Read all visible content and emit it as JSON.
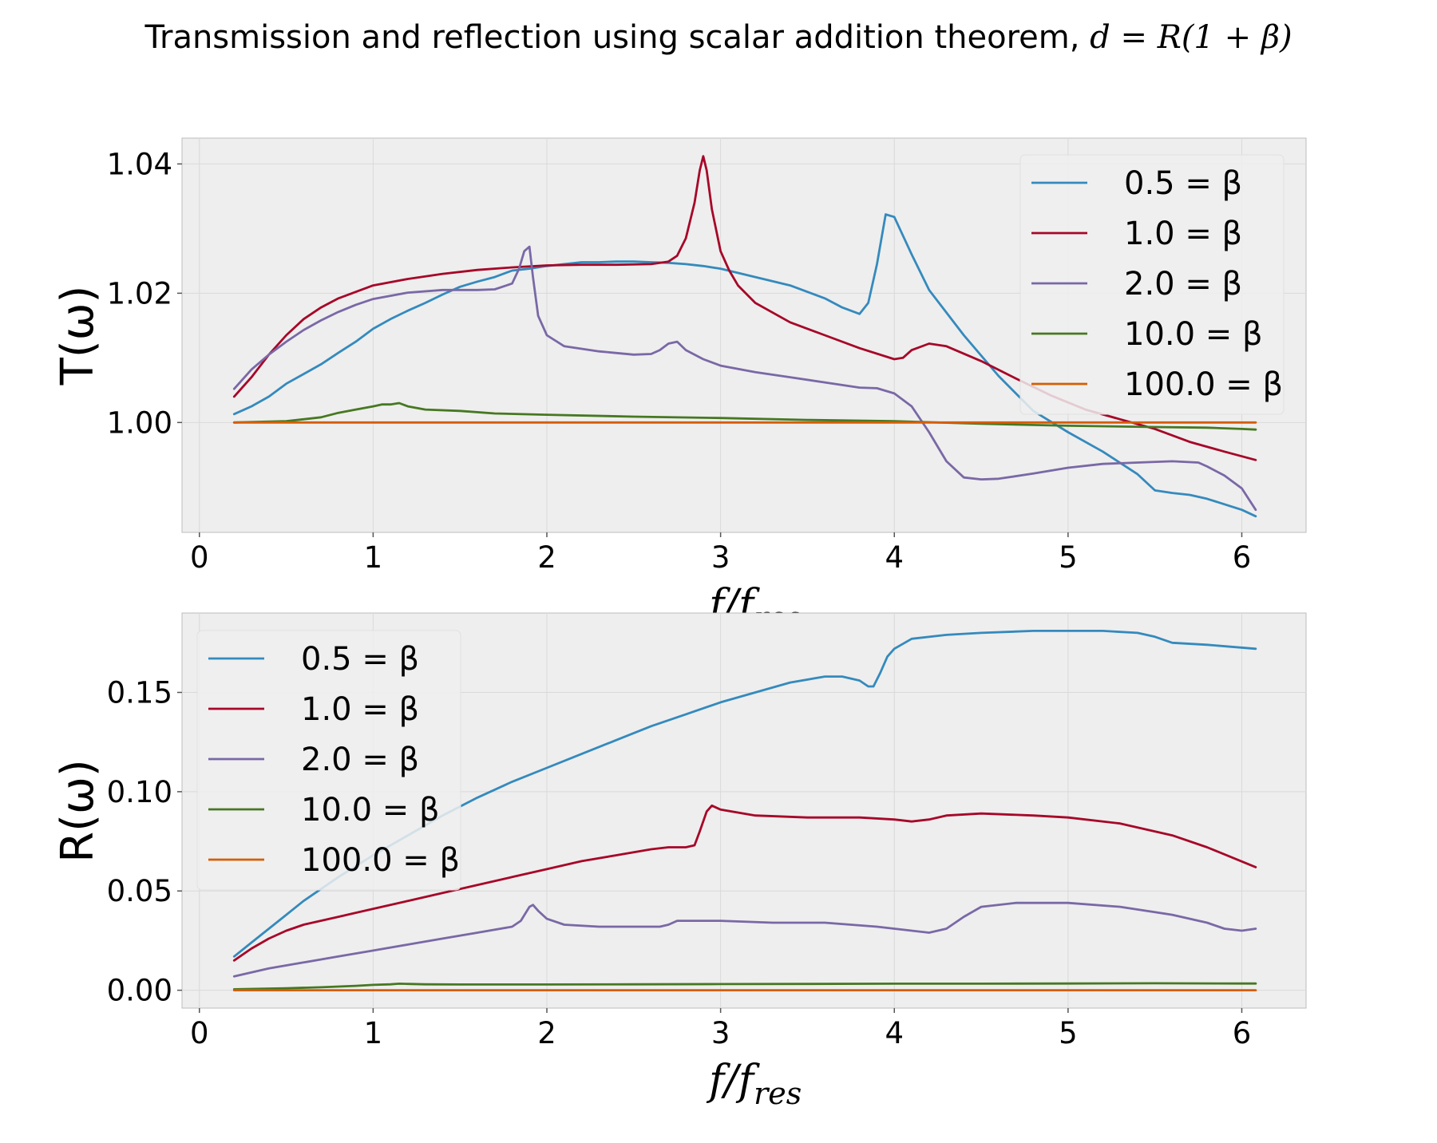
{
  "figure": {
    "title": "Transmission and reflection using scalar addition theorem, ",
    "title_math": "d = R(1 + β)"
  },
  "chart_data": [
    {
      "type": "line",
      "id": "transmission",
      "ylabel": "T(ω)",
      "xlabel": "f/f",
      "xlabel_sub": "res",
      "xlim": [
        -0.1,
        6.37
      ],
      "ylim": [
        0.983,
        1.044
      ],
      "xticks": [
        0,
        1,
        2,
        3,
        4,
        5,
        6
      ],
      "yticks": [
        1.0,
        1.02,
        1.04
      ],
      "ytick_labels": [
        "1.00",
        "1.02",
        "1.04"
      ],
      "grid": true,
      "legend_position": "upper right",
      "series": [
        {
          "name": "0.5 = β",
          "color": "#348abd",
          "x": [
            0.2,
            0.3,
            0.4,
            0.5,
            0.6,
            0.7,
            0.8,
            0.9,
            1.0,
            1.1,
            1.2,
            1.3,
            1.4,
            1.5,
            1.6,
            1.7,
            1.8,
            1.9,
            2.0,
            2.1,
            2.2,
            2.3,
            2.4,
            2.5,
            2.6,
            2.7,
            2.8,
            2.9,
            3.0,
            3.2,
            3.4,
            3.6,
            3.7,
            3.8,
            3.85,
            3.9,
            3.95,
            4.0,
            4.1,
            4.2,
            4.4,
            4.6,
            4.8,
            5.0,
            5.2,
            5.4,
            5.5,
            5.6,
            5.7,
            5.8,
            6.0,
            6.08
          ],
          "y": [
            1.0013,
            1.0025,
            1.004,
            1.006,
            1.0075,
            1.009,
            1.0108,
            1.0125,
            1.0145,
            1.016,
            1.0173,
            1.0185,
            1.0198,
            1.021,
            1.0218,
            1.0225,
            1.0235,
            1.0238,
            1.0242,
            1.0245,
            1.0248,
            1.0248,
            1.0249,
            1.0249,
            1.0248,
            1.0247,
            1.0245,
            1.0242,
            1.0238,
            1.0225,
            1.0212,
            1.0192,
            1.0178,
            1.0168,
            1.0185,
            1.0245,
            1.0322,
            1.0318,
            1.026,
            1.0205,
            1.0135,
            1.0072,
            1.0018,
            0.9985,
            0.9955,
            0.992,
            0.9895,
            0.9891,
            0.9888,
            0.9882,
            0.9865,
            0.9855
          ]
        },
        {
          "name": "1.0 = β",
          "color": "#a60628",
          "x": [
            0.2,
            0.3,
            0.4,
            0.5,
            0.6,
            0.7,
            0.8,
            0.9,
            1.0,
            1.2,
            1.4,
            1.6,
            1.8,
            2.0,
            2.2,
            2.4,
            2.6,
            2.7,
            2.75,
            2.8,
            2.85,
            2.88,
            2.9,
            2.92,
            2.95,
            3.0,
            3.05,
            3.1,
            3.2,
            3.4,
            3.6,
            3.8,
            4.0,
            4.05,
            4.1,
            4.2,
            4.3,
            4.5,
            4.7,
            4.9,
            5.1,
            5.3,
            5.5,
            5.7,
            5.9,
            6.08
          ],
          "y": [
            1.004,
            1.007,
            1.0105,
            1.0135,
            1.016,
            1.0178,
            1.0192,
            1.0202,
            1.0212,
            1.0222,
            1.023,
            1.0236,
            1.024,
            1.0243,
            1.0244,
            1.0244,
            1.0245,
            1.0249,
            1.0258,
            1.0285,
            1.034,
            1.039,
            1.0412,
            1.039,
            1.033,
            1.0265,
            1.0235,
            1.0212,
            1.0185,
            1.0155,
            1.0135,
            1.0115,
            1.0098,
            1.01,
            1.0112,
            1.0122,
            1.0118,
            1.0095,
            1.0068,
            1.0042,
            1.002,
            1.0005,
            0.999,
            0.997,
            0.9955,
            0.9942
          ]
        },
        {
          "name": "2.0 = β",
          "color": "#7a68a6",
          "x": [
            0.2,
            0.3,
            0.4,
            0.5,
            0.6,
            0.7,
            0.8,
            0.9,
            1.0,
            1.2,
            1.4,
            1.6,
            1.7,
            1.8,
            1.84,
            1.87,
            1.9,
            1.92,
            1.95,
            2.0,
            2.1,
            2.3,
            2.5,
            2.6,
            2.65,
            2.7,
            2.75,
            2.8,
            2.9,
            3.0,
            3.2,
            3.4,
            3.6,
            3.8,
            3.9,
            4.0,
            4.1,
            4.2,
            4.3,
            4.4,
            4.5,
            4.6,
            4.8,
            5.0,
            5.2,
            5.4,
            5.6,
            5.75,
            5.8,
            5.9,
            6.0,
            6.08
          ],
          "y": [
            1.0052,
            1.0082,
            1.0105,
            1.0125,
            1.0143,
            1.0158,
            1.0171,
            1.0182,
            1.0191,
            1.0201,
            1.0205,
            1.0205,
            1.0206,
            1.0215,
            1.0238,
            1.0265,
            1.0272,
            1.0225,
            1.0165,
            1.0135,
            1.0118,
            1.011,
            1.0105,
            1.0106,
            1.0112,
            1.0122,
            1.0125,
            1.0112,
            1.0098,
            1.0088,
            1.0078,
            1.007,
            1.0062,
            1.0054,
            1.0053,
            1.0045,
            1.0025,
            0.9985,
            0.994,
            0.9915,
            0.9912,
            0.9913,
            0.9921,
            0.993,
            0.9936,
            0.9938,
            0.994,
            0.9938,
            0.9932,
            0.9918,
            0.9898,
            0.9865
          ]
        },
        {
          "name": "10.0 = β",
          "color": "#467821",
          "x": [
            0.2,
            0.5,
            0.7,
            0.8,
            0.9,
            1.0,
            1.05,
            1.1,
            1.15,
            1.2,
            1.3,
            1.5,
            1.7,
            2.0,
            2.5,
            3.0,
            3.5,
            4.0,
            4.5,
            5.0,
            5.5,
            5.8,
            6.0,
            6.08
          ],
          "y": [
            1.0,
            1.0002,
            1.0008,
            1.0015,
            1.002,
            1.0025,
            1.0028,
            1.0028,
            1.003,
            1.0025,
            1.002,
            1.0018,
            1.0014,
            1.0012,
            1.0009,
            1.0007,
            1.0004,
            1.0002,
            0.9998,
            0.9995,
            0.9993,
            0.9992,
            0.999,
            0.9989
          ]
        },
        {
          "name": "100.0 = β",
          "color": "#d55e00",
          "x": [
            0.2,
            1.0,
            2.0,
            3.0,
            4.0,
            5.0,
            6.08
          ],
          "y": [
            1.0,
            1.0,
            1.0,
            1.0,
            1.0,
            1.0,
            1.0
          ]
        }
      ]
    },
    {
      "type": "line",
      "id": "reflection",
      "ylabel": "R(ω)",
      "xlabel": "f/f",
      "xlabel_sub": "res",
      "xlim": [
        -0.1,
        6.37
      ],
      "ylim": [
        -0.009,
        0.19
      ],
      "xticks": [
        0,
        1,
        2,
        3,
        4,
        5,
        6
      ],
      "yticks": [
        0.0,
        0.05,
        0.1,
        0.15
      ],
      "ytick_labels": [
        "0.00",
        "0.05",
        "0.10",
        "0.15"
      ],
      "grid": true,
      "legend_position": "upper left",
      "series": [
        {
          "name": "0.5 = β",
          "color": "#348abd",
          "x": [
            0.2,
            0.3,
            0.4,
            0.5,
            0.6,
            0.8,
            1.0,
            1.2,
            1.4,
            1.6,
            1.8,
            2.0,
            2.2,
            2.4,
            2.6,
            2.8,
            3.0,
            3.2,
            3.4,
            3.6,
            3.7,
            3.8,
            3.85,
            3.88,
            3.92,
            3.96,
            4.0,
            4.1,
            4.3,
            4.5,
            4.8,
            5.0,
            5.2,
            5.4,
            5.5,
            5.6,
            5.8,
            6.08
          ],
          "y": [
            0.017,
            0.024,
            0.031,
            0.038,
            0.045,
            0.057,
            0.068,
            0.078,
            0.088,
            0.097,
            0.105,
            0.112,
            0.119,
            0.126,
            0.133,
            0.139,
            0.145,
            0.15,
            0.155,
            0.158,
            0.158,
            0.156,
            0.153,
            0.153,
            0.16,
            0.168,
            0.172,
            0.177,
            0.179,
            0.18,
            0.181,
            0.181,
            0.181,
            0.18,
            0.178,
            0.175,
            0.174,
            0.172
          ]
        },
        {
          "name": "1.0 = β",
          "color": "#a60628",
          "x": [
            0.2,
            0.3,
            0.4,
            0.5,
            0.6,
            0.8,
            1.0,
            1.2,
            1.4,
            1.6,
            1.8,
            2.0,
            2.2,
            2.4,
            2.6,
            2.7,
            2.8,
            2.85,
            2.88,
            2.92,
            2.95,
            3.0,
            3.2,
            3.5,
            3.8,
            4.0,
            4.1,
            4.2,
            4.3,
            4.5,
            4.8,
            5.0,
            5.3,
            5.6,
            5.8,
            6.08
          ],
          "y": [
            0.015,
            0.021,
            0.026,
            0.03,
            0.033,
            0.037,
            0.041,
            0.045,
            0.049,
            0.053,
            0.057,
            0.061,
            0.065,
            0.068,
            0.071,
            0.072,
            0.072,
            0.073,
            0.08,
            0.09,
            0.093,
            0.091,
            0.088,
            0.087,
            0.087,
            0.086,
            0.085,
            0.086,
            0.088,
            0.089,
            0.088,
            0.087,
            0.084,
            0.078,
            0.072,
            0.062
          ]
        },
        {
          "name": "2.0 = β",
          "color": "#7a68a6",
          "x": [
            0.2,
            0.4,
            0.6,
            0.8,
            1.0,
            1.2,
            1.4,
            1.6,
            1.8,
            1.85,
            1.9,
            1.92,
            1.95,
            2.0,
            2.1,
            2.3,
            2.5,
            2.65,
            2.7,
            2.75,
            2.8,
            3.0,
            3.3,
            3.6,
            3.9,
            4.0,
            4.1,
            4.2,
            4.3,
            4.4,
            4.5,
            4.7,
            5.0,
            5.3,
            5.6,
            5.8,
            5.9,
            6.0,
            6.08
          ],
          "y": [
            0.007,
            0.011,
            0.014,
            0.017,
            0.02,
            0.023,
            0.026,
            0.029,
            0.032,
            0.035,
            0.042,
            0.043,
            0.04,
            0.036,
            0.033,
            0.032,
            0.032,
            0.032,
            0.033,
            0.035,
            0.035,
            0.035,
            0.034,
            0.034,
            0.032,
            0.031,
            0.03,
            0.029,
            0.031,
            0.037,
            0.042,
            0.044,
            0.044,
            0.042,
            0.038,
            0.034,
            0.031,
            0.03,
            0.031
          ]
        },
        {
          "name": "10.0 = β",
          "color": "#467821",
          "x": [
            0.2,
            0.5,
            0.7,
            0.9,
            1.0,
            1.1,
            1.15,
            1.2,
            1.3,
            1.5,
            2.0,
            2.5,
            3.0,
            3.5,
            4.0,
            4.5,
            5.0,
            5.5,
            6.0,
            6.08
          ],
          "y": [
            0.0005,
            0.001,
            0.0015,
            0.0022,
            0.0027,
            0.003,
            0.0033,
            0.0032,
            0.003,
            0.0029,
            0.0029,
            0.003,
            0.0031,
            0.0032,
            0.0033,
            0.0033,
            0.0034,
            0.0035,
            0.0034,
            0.0034
          ]
        },
        {
          "name": "100.0 = β",
          "color": "#d55e00",
          "x": [
            0.2,
            1.0,
            2.0,
            3.0,
            4.0,
            5.0,
            6.08
          ],
          "y": [
            0.0,
            0.0,
            0.0,
            0.0,
            0.0,
            0.0,
            0.0
          ]
        }
      ]
    }
  ]
}
